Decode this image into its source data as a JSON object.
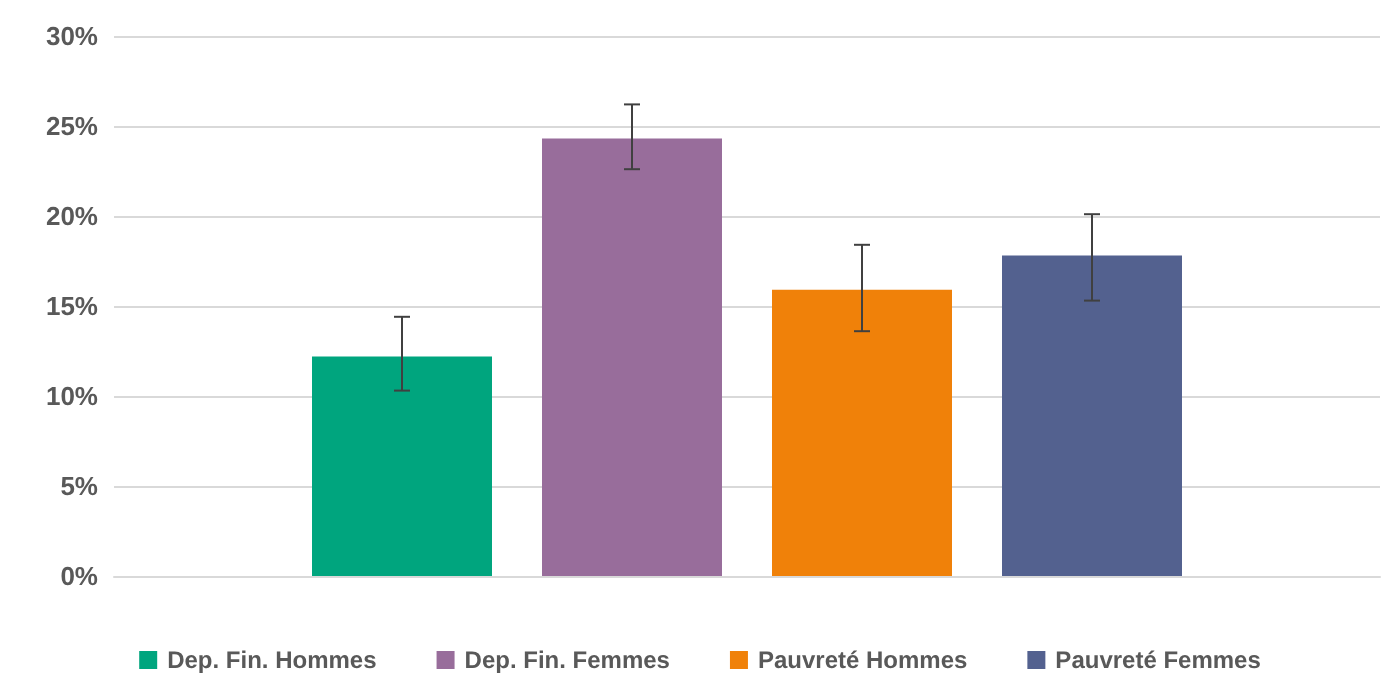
{
  "chart_data": {
    "type": "bar",
    "categories": [
      null
    ],
    "series": [
      {
        "name": "Dep. Fin. Hommes",
        "color": "#00a57e",
        "values": [
          12.2
        ],
        "errors": [
          [
            10.3,
            14.4
          ]
        ]
      },
      {
        "name": "Dep. Fin. Femmes",
        "color": "#986d9b",
        "values": [
          24.3
        ],
        "errors": [
          [
            22.6,
            26.2
          ]
        ]
      },
      {
        "name": "Pauvreté Hommes",
        "color": "#f08109",
        "values": [
          15.9
        ],
        "errors": [
          [
            13.6,
            18.4
          ]
        ]
      },
      {
        "name": "Pauvreté Femmes",
        "color": "#53618f",
        "values": [
          17.8
        ],
        "errors": [
          [
            15.3,
            20.1
          ]
        ]
      }
    ],
    "ylim": [
      0,
      30
    ],
    "yticks": [
      {
        "value": 0,
        "label": "0%"
      },
      {
        "value": 5,
        "label": "5%"
      },
      {
        "value": 10,
        "label": "10%"
      },
      {
        "value": 15,
        "label": "15%"
      },
      {
        "value": 20,
        "label": "20%"
      },
      {
        "value": 25,
        "label": "25%"
      },
      {
        "value": 30,
        "label": "30%"
      }
    ],
    "grid": "y",
    "legend": "bottom"
  }
}
